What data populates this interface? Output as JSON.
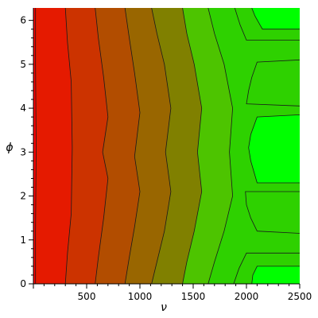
{
  "chart_data": {
    "type": "heatmap",
    "subtype": "filled-contour",
    "title": "",
    "xlabel": "ν",
    "ylabel": "ϕ",
    "xlim": [
      0,
      2500
    ],
    "ylim": [
      0,
      6.2832
    ],
    "x_ticks": [
      500,
      1000,
      1500,
      2000,
      2500
    ],
    "y_ticks": [
      0,
      1,
      2,
      3,
      4,
      5,
      6
    ],
    "grid": false,
    "legend": "none",
    "colormap": {
      "low": "#ff0000",
      "high": "#00ff00"
    },
    "levels": 9,
    "band_colors": [
      "#ff0000",
      "#e51a00",
      "#cc3300",
      "#b24d00",
      "#996600",
      "#808000",
      "#4dc400",
      "#2ed100",
      "#00ff00"
    ],
    "contours": [
      {
        "level": 1,
        "points": [
          [
            20,
            0
          ],
          [
            20,
            1.2
          ],
          [
            26,
            3.1
          ],
          [
            20,
            5.0
          ],
          [
            20,
            6.2832
          ]
        ]
      },
      {
        "level": 2,
        "points": [
          [
            300,
            0
          ],
          [
            320,
            0.7
          ],
          [
            355,
            1.6
          ],
          [
            365,
            3.1
          ],
          [
            355,
            4.6
          ],
          [
            320,
            5.5
          ],
          [
            300,
            6.2832
          ]
        ]
      },
      {
        "level": 3,
        "points": [
          [
            580,
            0
          ],
          [
            610,
            0.6
          ],
          [
            660,
            1.5
          ],
          [
            700,
            2.4
          ],
          [
            650,
            3.0
          ],
          [
            700,
            3.8
          ],
          [
            660,
            4.7
          ],
          [
            610,
            5.6
          ],
          [
            580,
            6.2832
          ]
        ]
      },
      {
        "level": 4,
        "points": [
          [
            860,
            0
          ],
          [
            900,
            0.6
          ],
          [
            950,
            1.3
          ],
          [
            1000,
            2.1
          ],
          [
            950,
            2.9
          ],
          [
            1000,
            3.9
          ],
          [
            950,
            4.8
          ],
          [
            900,
            5.6
          ],
          [
            860,
            6.2832
          ]
        ]
      },
      {
        "level": 5,
        "points": [
          [
            1110,
            0
          ],
          [
            1160,
            0.5
          ],
          [
            1230,
            1.2
          ],
          [
            1290,
            2.1
          ],
          [
            1240,
            3.0
          ],
          [
            1290,
            4.0
          ],
          [
            1230,
            5.0
          ],
          [
            1160,
            5.7
          ],
          [
            1110,
            6.2832
          ]
        ]
      },
      {
        "level": 6,
        "points": [
          [
            1400,
            0
          ],
          [
            1440,
            0.5
          ],
          [
            1510,
            1.2
          ],
          [
            1580,
            2.1
          ],
          [
            1540,
            3.0
          ],
          [
            1580,
            4.0
          ],
          [
            1510,
            5.0
          ],
          [
            1440,
            5.7
          ],
          [
            1400,
            6.2832
          ]
        ]
      },
      {
        "level": 7,
        "points": [
          [
            1640,
            0
          ],
          [
            1700,
            0.5
          ],
          [
            1790,
            1.2
          ],
          [
            1870,
            2.0
          ],
          [
            1840,
            3.0
          ],
          [
            1870,
            4.0
          ],
          [
            1790,
            5.0
          ],
          [
            1700,
            5.7
          ],
          [
            1640,
            6.2832
          ]
        ]
      },
      {
        "level": 8,
        "points": [
          [
            1880,
            0
          ],
          [
            1930,
            0.35
          ],
          [
            2000,
            0.7
          ],
          [
            2500,
            0.7
          ]
        ]
      },
      {
        "level": 8,
        "points": [
          [
            2500,
            1.15
          ],
          [
            2100,
            1.2
          ],
          [
            2040,
            1.5
          ],
          [
            2000,
            1.8
          ],
          [
            1990,
            2.1
          ],
          [
            2500,
            2.1
          ]
        ]
      },
      {
        "level": 8,
        "points": [
          [
            2500,
            4.05
          ],
          [
            2000,
            4.1
          ],
          [
            2020,
            4.4
          ],
          [
            2050,
            4.7
          ],
          [
            2100,
            5.05
          ],
          [
            2500,
            5.1
          ]
        ]
      },
      {
        "level": 8,
        "points": [
          [
            2500,
            5.55
          ],
          [
            2000,
            5.55
          ],
          [
            1940,
            5.9
          ],
          [
            1890,
            6.2832
          ]
        ]
      },
      {
        "level": 9,
        "points": [
          [
            2500,
            0.4
          ],
          [
            2100,
            0.4
          ],
          [
            2060,
            0.2
          ],
          [
            2050,
            0
          ]
        ]
      },
      {
        "level": 9,
        "points": [
          [
            2500,
            2.3
          ],
          [
            2100,
            2.3
          ],
          [
            2040,
            2.8
          ],
          [
            2020,
            3.1
          ],
          [
            2040,
            3.4
          ],
          [
            2100,
            3.8
          ],
          [
            2500,
            3.85
          ]
        ]
      },
      {
        "level": 9,
        "points": [
          [
            2500,
            5.8
          ],
          [
            2150,
            5.8
          ],
          [
            2080,
            6.1
          ],
          [
            2050,
            6.2832
          ]
        ]
      }
    ]
  }
}
